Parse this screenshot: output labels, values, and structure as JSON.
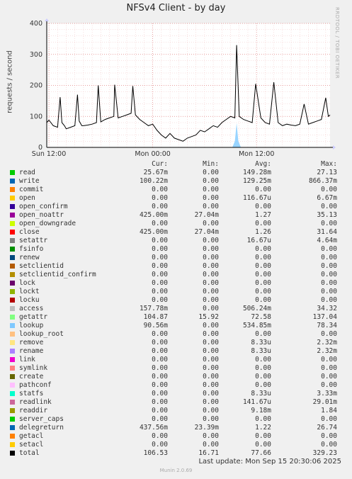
{
  "title": "NFSv4 Client - by day",
  "side_label": "RRDTOOL / TOBI OETIKER",
  "footer": {
    "last_update": "Last update: Mon Sep 15 20:30:06 2025",
    "munin": "Munin 2.0.69"
  },
  "legend_headers": {
    "cur": "Cur:",
    "min": "Min:",
    "avg": "Avg:",
    "max": "Max:"
  },
  "legend": [
    {
      "name": "read",
      "color": "#00cc00",
      "cur": "25.67m",
      "min": "0.00",
      "avg": "149.28m",
      "max": "27.13"
    },
    {
      "name": "write",
      "color": "#0066b3",
      "cur": "100.22m",
      "min": "0.00",
      "avg": "129.25m",
      "max": "866.37m"
    },
    {
      "name": "commit",
      "color": "#ff8000",
      "cur": "0.00",
      "min": "0.00",
      "avg": "0.00",
      "max": "0.00"
    },
    {
      "name": "open",
      "color": "#ffcc00",
      "cur": "0.00",
      "min": "0.00",
      "avg": "116.67u",
      "max": "6.67m"
    },
    {
      "name": "open_confirm",
      "color": "#330099",
      "cur": "0.00",
      "min": "0.00",
      "avg": "0.00",
      "max": "0.00"
    },
    {
      "name": "open_noattr",
      "color": "#990099",
      "cur": "425.00m",
      "min": "27.04m",
      "avg": "1.27",
      "max": "35.13"
    },
    {
      "name": "open_downgrade",
      "color": "#ccff00",
      "cur": "0.00",
      "min": "0.00",
      "avg": "0.00",
      "max": "0.00"
    },
    {
      "name": "close",
      "color": "#ff0000",
      "cur": "425.00m",
      "min": "27.04m",
      "avg": "1.26",
      "max": "31.64"
    },
    {
      "name": "setattr",
      "color": "#808080",
      "cur": "0.00",
      "min": "0.00",
      "avg": "16.67u",
      "max": "4.64m"
    },
    {
      "name": "fsinfo",
      "color": "#008f00",
      "cur": "0.00",
      "min": "0.00",
      "avg": "0.00",
      "max": "0.00"
    },
    {
      "name": "renew",
      "color": "#00487d",
      "cur": "0.00",
      "min": "0.00",
      "avg": "0.00",
      "max": "0.00"
    },
    {
      "name": "setclientid",
      "color": "#b35a00",
      "cur": "0.00",
      "min": "0.00",
      "avg": "0.00",
      "max": "0.00"
    },
    {
      "name": "setclientid_confirm",
      "color": "#b38f00",
      "cur": "0.00",
      "min": "0.00",
      "avg": "0.00",
      "max": "0.00"
    },
    {
      "name": "lock",
      "color": "#6b006b",
      "cur": "0.00",
      "min": "0.00",
      "avg": "0.00",
      "max": "0.00"
    },
    {
      "name": "lockt",
      "color": "#8fb300",
      "cur": "0.00",
      "min": "0.00",
      "avg": "0.00",
      "max": "0.00"
    },
    {
      "name": "locku",
      "color": "#b30000",
      "cur": "0.00",
      "min": "0.00",
      "avg": "0.00",
      "max": "0.00"
    },
    {
      "name": "access",
      "color": "#bebebe",
      "cur": "157.78m",
      "min": "0.00",
      "avg": "506.24m",
      "max": "34.32"
    },
    {
      "name": "getattr",
      "color": "#80ff80",
      "cur": "104.87",
      "min": "15.92",
      "avg": "72.58",
      "max": "137.04"
    },
    {
      "name": "lookup",
      "color": "#80c9ff",
      "cur": "90.56m",
      "min": "0.00",
      "avg": "534.85m",
      "max": "78.34"
    },
    {
      "name": "lookup_root",
      "color": "#ffc080",
      "cur": "0.00",
      "min": "0.00",
      "avg": "0.00",
      "max": "0.00"
    },
    {
      "name": "remove",
      "color": "#ffe680",
      "cur": "0.00",
      "min": "0.00",
      "avg": "8.33u",
      "max": "2.32m"
    },
    {
      "name": "rename",
      "color": "#aa80ff",
      "cur": "0.00",
      "min": "0.00",
      "avg": "8.33u",
      "max": "2.32m"
    },
    {
      "name": "link",
      "color": "#ee00cc",
      "cur": "0.00",
      "min": "0.00",
      "avg": "0.00",
      "max": "0.00"
    },
    {
      "name": "symlink",
      "color": "#ff8080",
      "cur": "0.00",
      "min": "0.00",
      "avg": "0.00",
      "max": "0.00"
    },
    {
      "name": "create",
      "color": "#666600",
      "cur": "0.00",
      "min": "0.00",
      "avg": "0.00",
      "max": "0.00"
    },
    {
      "name": "pathconf",
      "color": "#ffbfff",
      "cur": "0.00",
      "min": "0.00",
      "avg": "0.00",
      "max": "0.00"
    },
    {
      "name": "statfs",
      "color": "#00ffcc",
      "cur": "0.00",
      "min": "0.00",
      "avg": "8.33u",
      "max": "3.33m"
    },
    {
      "name": "readlink",
      "color": "#cc6699",
      "cur": "0.00",
      "min": "0.00",
      "avg": "141.67u",
      "max": "29.01m"
    },
    {
      "name": "readdir",
      "color": "#999900",
      "cur": "0.00",
      "min": "0.00",
      "avg": "9.18m",
      "max": "1.84"
    },
    {
      "name": "server_caps",
      "color": "#00cc00",
      "cur": "0.00",
      "min": "0.00",
      "avg": "0.00",
      "max": "0.00"
    },
    {
      "name": "delegreturn",
      "color": "#0066b3",
      "cur": "437.56m",
      "min": "23.39m",
      "avg": "1.22",
      "max": "26.74"
    },
    {
      "name": "getacl",
      "color": "#ff8000",
      "cur": "0.00",
      "min": "0.00",
      "avg": "0.00",
      "max": "0.00"
    },
    {
      "name": "setacl",
      "color": "#ffcc00",
      "cur": "0.00",
      "min": "0.00",
      "avg": "0.00",
      "max": "0.00"
    },
    {
      "name": "total",
      "color": "#000000",
      "cur": "106.53",
      "min": "16.71",
      "avg": "77.66",
      "max": "329.23"
    }
  ],
  "chart_data": {
    "type": "line",
    "title": "NFSv4 Client - by day",
    "ylabel": "requests / second",
    "ylim": [
      0,
      400
    ],
    "yticks": [
      0,
      100,
      200,
      300,
      400
    ],
    "xtick_labels": [
      {
        "label": "Sun 12:00",
        "hour": 0
      },
      {
        "label": "Mon 00:00",
        "hour": 12
      },
      {
        "label": "Mon 12:00",
        "hour": 24
      }
    ],
    "xlim_hours": [
      -0.25,
      32.5
    ],
    "grid": true,
    "series": [
      {
        "name": "total",
        "color": "#000000",
        "x_hours": [
          -0.25,
          0.0,
          0.5,
          1.0,
          1.3,
          1.5,
          1.8,
          2.0,
          2.5,
          3.0,
          3.3,
          3.5,
          3.8,
          4.0,
          4.5,
          5.0,
          5.5,
          5.7,
          6.0,
          6.5,
          7.0,
          7.5,
          7.6,
          8.0,
          8.5,
          9.0,
          9.5,
          9.7,
          10.0,
          10.5,
          11.0,
          11.5,
          12.0,
          12.5,
          13.0,
          13.5,
          14.0,
          14.5,
          15.0,
          15.5,
          16.0,
          16.5,
          17.0,
          17.5,
          18.0,
          18.5,
          19.0,
          19.5,
          20.0,
          20.5,
          21.0,
          21.5,
          21.7,
          22.0,
          22.5,
          23.0,
          23.5,
          23.9,
          24.5,
          25.0,
          25.5,
          26.0,
          26.5,
          27.0,
          27.5,
          28.0,
          28.5,
          29.0,
          29.5,
          30.0,
          30.5,
          31.0,
          31.5,
          32.0,
          32.3,
          32.5
        ],
        "y": [
          80,
          88,
          70,
          65,
          162,
          80,
          70,
          60,
          65,
          70,
          170,
          85,
          70,
          70,
          72,
          75,
          80,
          200,
          82,
          90,
          95,
          100,
          202,
          95,
          100,
          105,
          110,
          198,
          105,
          90,
          80,
          70,
          75,
          55,
          40,
          30,
          45,
          30,
          25,
          20,
          30,
          35,
          40,
          55,
          50,
          60,
          70,
          65,
          80,
          90,
          100,
          95,
          330,
          100,
          90,
          85,
          80,
          205,
          95,
          80,
          75,
          210,
          80,
          70,
          75,
          72,
          70,
          75,
          140,
          75,
          80,
          85,
          90,
          160,
          100,
          105
        ]
      },
      {
        "name": "lookup",
        "color": "#80c9ff",
        "x_hours": [
          -0.25,
          21.2,
          21.5,
          21.7,
          21.9,
          22.2,
          32.5
        ],
        "y": [
          0,
          0,
          20,
          78,
          20,
          0,
          0
        ]
      }
    ]
  }
}
